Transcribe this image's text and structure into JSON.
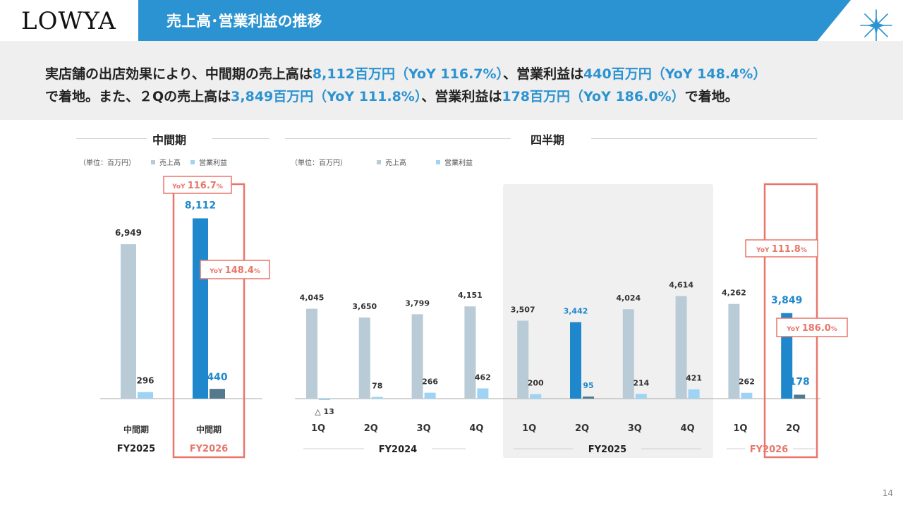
{
  "header": {
    "logo": "LOWYA",
    "title": "売上高･営業利益の推移"
  },
  "summary": {
    "line1": [
      {
        "t": "実店舗の出店効果により、中間期の売上高は",
        "hl": false
      },
      {
        "t": "8,112百万円（YoY 116.7%）",
        "hl": true
      },
      {
        "t": "、営業利益は",
        "hl": false
      },
      {
        "t": "440百万円（YoY 148.4%）",
        "hl": true
      }
    ],
    "line2": [
      {
        "t": "で着地。また、２Qの売上高は",
        "hl": false
      },
      {
        "t": "3,849百万円（YoY 111.8%）",
        "hl": true
      },
      {
        "t": "、営業利益は",
        "hl": false
      },
      {
        "t": "178百万円（YoY 186.0%）",
        "hl": true
      },
      {
        "t": "で着地。",
        "hl": false
      }
    ]
  },
  "panels": {
    "interim_title": "中間期",
    "quarterly_title": "四半期",
    "unit": "（単位：百万円）",
    "legend_sales": "売上高",
    "legend_op": "営業利益"
  },
  "colors": {
    "sales_past": "#b9cbd6",
    "op_past": "#9fd3f3",
    "sales_current": "#1f88cc",
    "op_current": "#52798c",
    "highlight": "#e8766b",
    "accent": "#2b93d1"
  },
  "chart_data": [
    {
      "type": "bar",
      "title": "中間期",
      "categories": [
        "中間期",
        "中間期"
      ],
      "groups": [
        "FY2025",
        "FY2026"
      ],
      "series": [
        {
          "name": "売上高",
          "values": [
            6949,
            8112
          ],
          "labels": [
            "6,949",
            "8,112"
          ]
        },
        {
          "name": "営業利益",
          "values": [
            296,
            440
          ],
          "labels": [
            "296",
            "440"
          ]
        }
      ],
      "annotations": [
        {
          "text": "YoY 116.7%",
          "target": "売上高 FY2026"
        },
        {
          "text": "YoY 148.4%",
          "target": "営業利益 FY2026"
        }
      ],
      "unit": "百万円"
    },
    {
      "type": "bar",
      "title": "四半期",
      "categories": [
        "1Q",
        "2Q",
        "3Q",
        "4Q",
        "1Q",
        "2Q",
        "3Q",
        "4Q",
        "1Q",
        "2Q"
      ],
      "groups": [
        {
          "name": "FY2024",
          "count": 4
        },
        {
          "name": "FY2025",
          "count": 4
        },
        {
          "name": "FY2026",
          "count": 2
        }
      ],
      "series": [
        {
          "name": "売上高",
          "values": [
            4045,
            3650,
            3799,
            4151,
            3507,
            3442,
            4024,
            4614,
            4262,
            3849
          ],
          "labels": [
            "4,045",
            "3,650",
            "3,799",
            "4,151",
            "3,507",
            "3,442",
            "4,024",
            "4,614",
            "4,262",
            "3,849"
          ]
        },
        {
          "name": "営業利益",
          "values": [
            -13,
            78,
            266,
            462,
            200,
            95,
            214,
            421,
            262,
            178
          ],
          "labels": [
            "△ 13",
            "78",
            "266",
            "462",
            "200",
            "95",
            "214",
            "421",
            "262",
            "178"
          ]
        }
      ],
      "annotations": [
        {
          "text": "YoY 111.8%",
          "target": "売上高 FY2026 2Q"
        },
        {
          "text": "YoY 186.0%",
          "target": "営業利益 FY2026 2Q"
        }
      ],
      "unit": "百万円"
    }
  ],
  "page_number": "14"
}
